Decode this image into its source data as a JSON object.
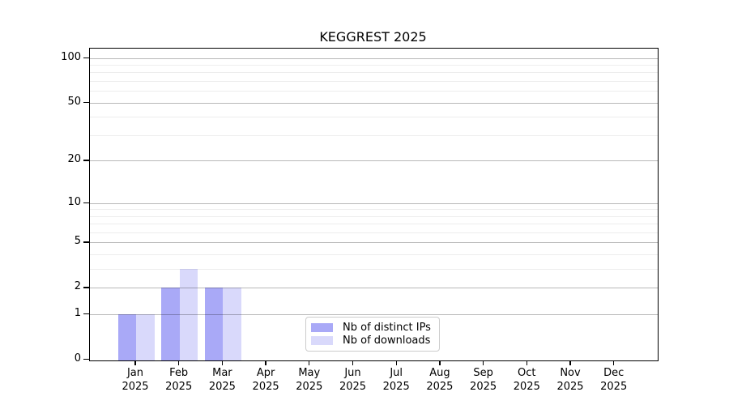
{
  "chart_data": {
    "type": "bar",
    "title": "KEGGREST 2025",
    "categories": [
      "Jan",
      "Feb",
      "Mar",
      "Apr",
      "May",
      "Jun",
      "Jul",
      "Aug",
      "Sep",
      "Oct",
      "Nov",
      "Dec"
    ],
    "x_year_label": "2025",
    "series": [
      {
        "name": "Nb of distinct IPs",
        "color": "#a9a9f7",
        "values": [
          1,
          2,
          2,
          0,
          0,
          0,
          0,
          0,
          0,
          0,
          0,
          0
        ]
      },
      {
        "name": "Nb of downloads",
        "color": "#d9d9fb",
        "values": [
          1,
          3,
          2,
          0,
          0,
          0,
          0,
          0,
          0,
          0,
          0,
          0
        ]
      }
    ],
    "yscale": "log1p",
    "ylim": [
      0,
      100
    ],
    "y_major_ticks": [
      0,
      1,
      2,
      5,
      10,
      20,
      50,
      100
    ],
    "y_minor_ticks": [
      3,
      4,
      6,
      7,
      8,
      9,
      30,
      40,
      60,
      70,
      80,
      90
    ],
    "grid": "both",
    "legend_position": "lower center",
    "colors": {
      "axis": "#000000",
      "major_grid": "#b9b9b9",
      "minor_grid": "#ebebeb",
      "background": "#ffffff"
    }
  }
}
